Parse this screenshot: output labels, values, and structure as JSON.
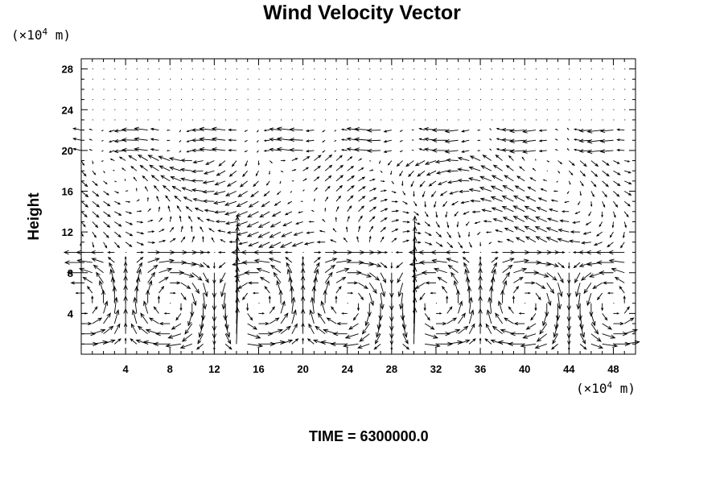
{
  "chart_data": {
    "type": "vector-field",
    "title": "Wind Velocity Vector",
    "ylabel": "Height",
    "y_unit": {
      "prefix": "(×10",
      "exp": "4",
      "suffix": " m)"
    },
    "x_unit": {
      "prefix": "(×10",
      "exp": "4",
      "suffix": " m)"
    },
    "xlim": [
      0,
      50
    ],
    "ylim": [
      0,
      29
    ],
    "xticks": [
      4,
      8,
      12,
      16,
      20,
      24,
      28,
      32,
      36,
      40,
      44,
      48
    ],
    "yticks": [
      4,
      8,
      12,
      16,
      20,
      24,
      28
    ],
    "grid": false,
    "footer": "TIME = 6300000.0"
  }
}
